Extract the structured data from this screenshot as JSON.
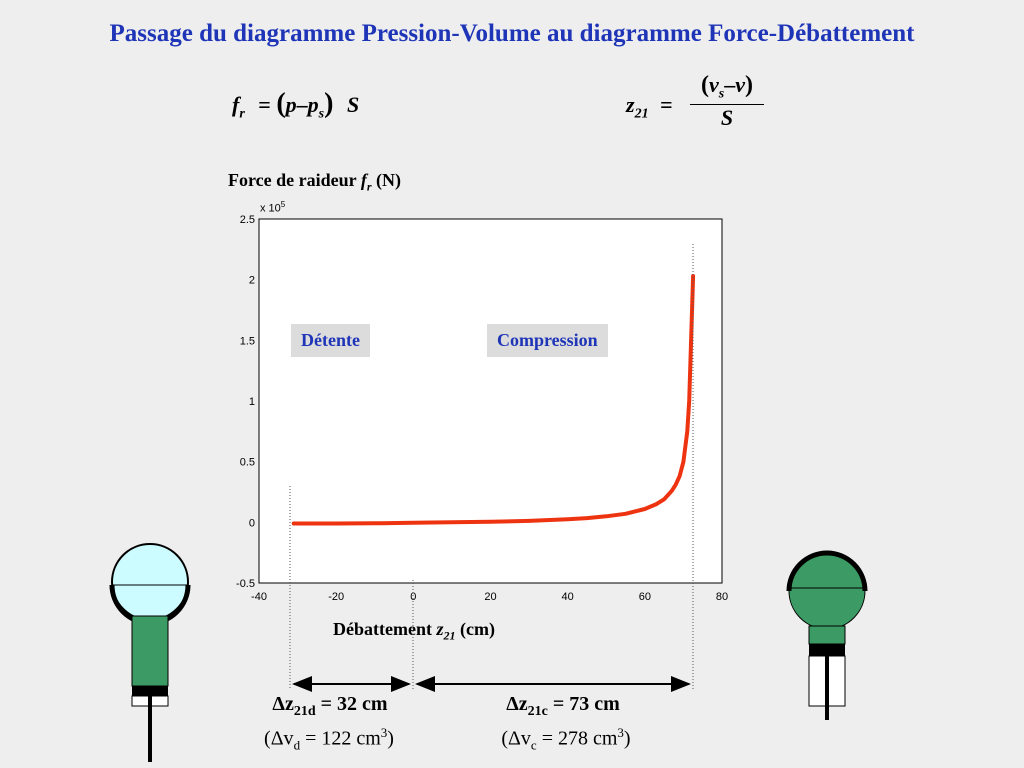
{
  "title": "Passage du diagramme Pression-Volume au diagramme Force-Débattement",
  "formula_left": {
    "lhs": "f",
    "lhs_sub": "r",
    "eq": "=",
    "open": "(",
    "p": "p",
    "minus": "–",
    "ps": "p",
    "ps_sub": "s",
    "close": ")",
    "S": "S"
  },
  "formula_right": {
    "lhs": "z",
    "lhs_sub": "21",
    "eq": "=",
    "num_v": "v",
    "num_v_sub": "s",
    "num_minus": "–",
    "num_v2": "v",
    "den": "S"
  },
  "ylabel": {
    "text": "Force de raideur ",
    "var": "f",
    "var_sub": "r",
    "unit": " (N)"
  },
  "scale_factor": "x 10",
  "scale_exp": "5",
  "xlabel": {
    "text": "Débattement ",
    "var": "z",
    "var_sub": "21",
    "unit": " (cm)"
  },
  "label_detente": "Détente",
  "label_compression": "Compression",
  "delta_d": {
    "d": "Δz",
    "sub": "21d",
    "rest": " = 32 cm",
    "v_open": "(Δv",
    "v_sub": "d",
    "v_rest": " = 122 cm",
    "v_exp": "3",
    "v_close": ")"
  },
  "delta_c": {
    "d": "Δz",
    "sub": "21c",
    "rest": " = 73 cm",
    "v_open": "(Δv",
    "v_sub": "c",
    "v_rest": " = 278 cm",
    "v_exp": "3",
    "v_close": ")"
  },
  "colors": {
    "title": "#1f35b8",
    "curve": "#ee3311",
    "chamber_left": "#ccfcff",
    "body": "#3c9a64"
  },
  "chart_data": {
    "type": "line",
    "x": [
      -31,
      -20,
      -10,
      0,
      10,
      20,
      30,
      40,
      45,
      50,
      55,
      60,
      63,
      65,
      67,
      68,
      69,
      70,
      71,
      71.5,
      72,
      72.5
    ],
    "y_units": "x 10^5 N",
    "series": [
      {
        "values": [
          -0.01,
          -0.01,
          -0.008,
          -0.003,
          0.0,
          0.005,
          0.012,
          0.025,
          0.035,
          0.05,
          0.07,
          0.11,
          0.15,
          0.19,
          0.26,
          0.31,
          0.38,
          0.5,
          0.75,
          1.0,
          1.5,
          2.03
        ],
        "color": "#ee3311"
      }
    ],
    "xlim": [
      -40,
      80
    ],
    "ylim": [
      -0.5,
      2.5
    ],
    "xticks": [
      "-40",
      "-20",
      "0",
      "20",
      "40",
      "60",
      "80"
    ],
    "yticks": [
      "-0.5",
      "0",
      "0.5",
      "1",
      "1.5",
      "2",
      "2.5"
    ],
    "grid": true
  }
}
